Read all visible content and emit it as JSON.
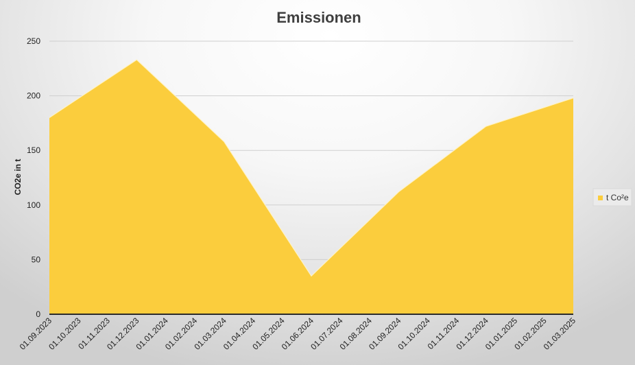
{
  "chart_data": {
    "type": "area",
    "title": "Emissionen",
    "xlabel": "",
    "ylabel": "CO2e in t",
    "ylim": [
      0,
      250
    ],
    "yticks": [
      0,
      50,
      100,
      150,
      200,
      250
    ],
    "grid": true,
    "legend_position": "right",
    "categories": [
      "01.09.2023",
      "01.10.2023",
      "01.11.2023",
      "01.12.2023",
      "01.01.2024",
      "01.02.2024",
      "01.03.2024",
      "01.04.2024",
      "01.05.2024",
      "01.06.2024",
      "01.07.2024",
      "01.08.2024",
      "01.09.2024",
      "01.10.2024",
      "01.11.2024",
      "01.12.2024",
      "01.01.2025",
      "01.02.2025",
      "01.03.2025"
    ],
    "series": [
      {
        "name": "t Co²e",
        "color": "#FBCD3D",
        "points": [
          {
            "x": "01.09.2023",
            "y": 180
          },
          {
            "x": "01.12.2023",
            "y": 233
          },
          {
            "x": "01.03.2024",
            "y": 158
          },
          {
            "x": "01.06.2024",
            "y": 35
          },
          {
            "x": "01.09.2024",
            "y": 112
          },
          {
            "x": "01.12.2024",
            "y": 172
          },
          {
            "x": "01.03.2025",
            "y": 198
          }
        ]
      }
    ]
  }
}
